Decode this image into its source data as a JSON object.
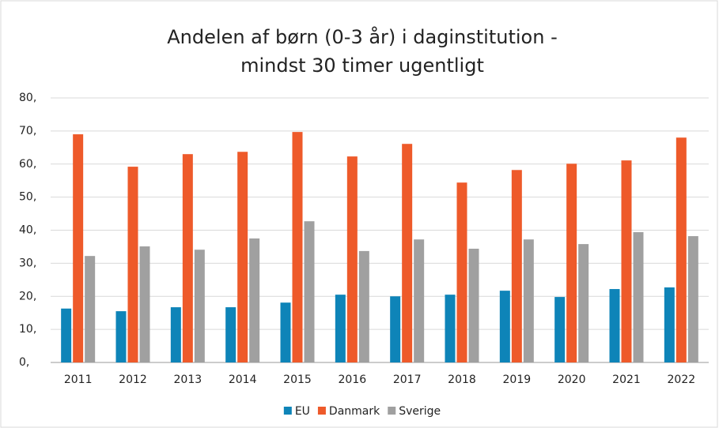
{
  "chart_data": {
    "type": "bar",
    "title": [
      "Andelen af børn (0-3 år) i daginstitution -",
      "mindst 30 timer ugentligt"
    ],
    "categories": [
      "2011",
      "2012",
      "2013",
      "2014",
      "2015",
      "2016",
      "2017",
      "2018",
      "2019",
      "2020",
      "2021",
      "2022"
    ],
    "series": [
      {
        "name": "EU",
        "color": "#0e84b8",
        "values": [
          16.3,
          15.5,
          16.7,
          16.7,
          18.1,
          20.5,
          20.0,
          20.5,
          21.7,
          19.8,
          22.2,
          22.7
        ]
      },
      {
        "name": "Danmark",
        "color": "#ee5a2a",
        "values": [
          69.0,
          59.2,
          63.0,
          63.7,
          69.7,
          62.3,
          66.1,
          54.4,
          58.2,
          60.1,
          61.1,
          68.0
        ]
      },
      {
        "name": "Sverige",
        "color": "#a0a0a0",
        "values": [
          32.2,
          35.1,
          34.1,
          37.5,
          42.7,
          33.7,
          37.2,
          34.4,
          37.2,
          35.8,
          39.4,
          38.2
        ]
      }
    ],
    "ylim": [
      0,
      80
    ],
    "yticks": [
      {
        "value": 0,
        "label": "0,"
      },
      {
        "value": 10,
        "label": "10,"
      },
      {
        "value": 20,
        "label": "20,"
      },
      {
        "value": 30,
        "label": "30,"
      },
      {
        "value": 40,
        "label": "40,"
      },
      {
        "value": 50,
        "label": "50,"
      },
      {
        "value": 60,
        "label": "60,"
      },
      {
        "value": 70,
        "label": "70,"
      },
      {
        "value": 80,
        "label": "80,"
      }
    ],
    "grid": true,
    "legend": "bottom"
  }
}
